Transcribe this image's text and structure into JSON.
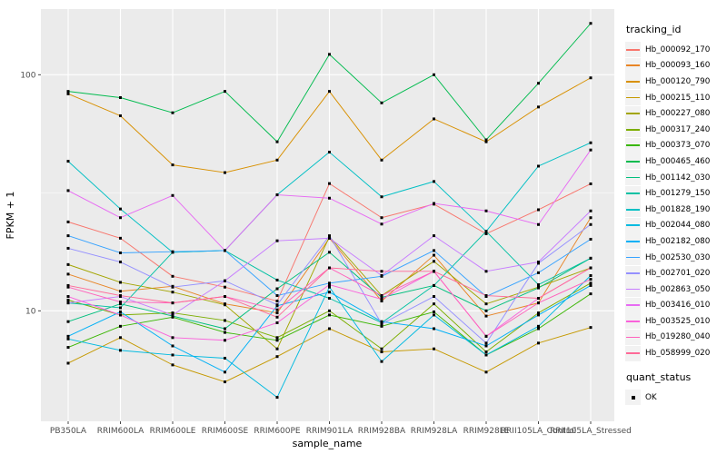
{
  "figure": {
    "legend1_title": "tracking_id",
    "legend2_title": "quant_status",
    "quant_status_label": "OK",
    "colors": {
      "panel_bg": "#EBEBEB",
      "grid_major": "#FFFFFF",
      "grid_minor": "#F7F7F7",
      "axis_text": "#4D4D4D",
      "tick_mark": "#333333",
      "point": "#000000",
      "legend_key_bg": "#F2F2F2"
    }
  },
  "chart_data": {
    "type": "line",
    "title": "",
    "xlabel": "sample_name",
    "ylabel": "FPKM + 1",
    "y_scale": "log10",
    "y_ticks": [
      100,
      10
    ],
    "y_tick_labels": [
      "100",
      "10"
    ],
    "y_minor_ticks": [
      316.2,
      31.62,
      3.162
    ],
    "ylim": [
      3.2,
      190
    ],
    "grid": true,
    "legend_position": "right",
    "point_shape": "filled-black-square",
    "quant_status": "OK",
    "categories": [
      "PB350LA",
      "RRIM600LA",
      "RRIM600LE",
      "RRIM600SE",
      "RRIM600PE",
      "RRIM901LA",
      "RRIM928BA",
      "RRIM928LA",
      "RRIM928LE",
      "RRII105LA_Control",
      "RRII105LA_Stressed"
    ],
    "series": [
      {
        "name": "Hb_000092_170",
        "color": "#F8766D",
        "values": [
          23.8,
          20.3,
          14.0,
          12.6,
          11.0,
          34.6,
          24.8,
          28.3,
          21.2,
          26.8,
          34.5
        ]
      },
      {
        "name": "Hb_000093_160",
        "color": "#E88526",
        "values": [
          14.3,
          12.1,
          12.7,
          10.7,
          9.8,
          20.3,
          11.0,
          17.2,
          9.5,
          10.8,
          24.8
        ]
      },
      {
        "name": "Hb_000120_790",
        "color": "#D89000",
        "values": [
          83,
          67,
          41.5,
          38.5,
          43.5,
          85,
          43.5,
          65,
          52,
          73,
          97
        ]
      },
      {
        "name": "Hb_000215_110",
        "color": "#C59900",
        "values": [
          6.0,
          7.7,
          5.9,
          5.0,
          6.4,
          8.4,
          6.7,
          6.9,
          5.5,
          7.3,
          8.5
        ]
      },
      {
        "name": "Hb_000227_080",
        "color": "#A3A500",
        "values": [
          15.7,
          13.2,
          12.0,
          10.6,
          6.9,
          20.6,
          11.6,
          16.2,
          10.7,
          12.6,
          15.2
        ]
      },
      {
        "name": "Hb_000317_240",
        "color": "#7CAE00",
        "values": [
          11.1,
          9.6,
          9.8,
          9.1,
          7.7,
          10.0,
          6.9,
          10.7,
          6.7,
          9.8,
          13.1
        ]
      },
      {
        "name": "Hb_000373_070",
        "color": "#39B600",
        "values": [
          7.0,
          8.6,
          9.4,
          8.1,
          7.5,
          9.6,
          8.6,
          9.9,
          6.5,
          8.4,
          11.8
        ]
      },
      {
        "name": "Hb_000465_460",
        "color": "#00BB4E",
        "values": [
          85,
          80,
          69,
          85,
          52,
          122,
          76,
          100,
          53,
          92,
          165
        ]
      },
      {
        "name": "Hb_001142_030",
        "color": "#00BF7D",
        "values": [
          9.0,
          10.7,
          9.5,
          8.4,
          12.4,
          17.7,
          11.4,
          12.8,
          10.0,
          12.5,
          16.7
        ]
      },
      {
        "name": "Hb_001279_150",
        "color": "#00C1A3",
        "values": [
          10.8,
          10.3,
          17.7,
          18.0,
          13.5,
          11.3,
          8.9,
          12.8,
          21.7,
          12.9,
          16.7
        ]
      },
      {
        "name": "Hb_001828_190",
        "color": "#00BFC4",
        "values": [
          43,
          27,
          17.7,
          18.0,
          31,
          47,
          30.4,
          35.3,
          21.7,
          41,
          51.5
        ]
      },
      {
        "name": "Hb_002044_080",
        "color": "#00BAE0",
        "values": [
          7.6,
          6.8,
          6.5,
          6.3,
          4.3,
          12.6,
          6.1,
          9.6,
          6.5,
          8.6,
          14.1
        ]
      },
      {
        "name": "Hb_002182_080",
        "color": "#00B0F6",
        "values": [
          7.8,
          9.9,
          7.1,
          5.5,
          10.5,
          12.0,
          9.0,
          8.4,
          7.1,
          9.6,
          12.8
        ]
      },
      {
        "name": "Hb_002530_030",
        "color": "#35A2FF",
        "values": [
          20.8,
          17.6,
          17.8,
          18.0,
          11.6,
          13.1,
          14.0,
          18.0,
          11.5,
          14.5,
          20.1
        ]
      },
      {
        "name": "Hb_002701_020",
        "color": "#9590FF",
        "values": [
          18.4,
          16.1,
          12.6,
          13.4,
          10.6,
          20.8,
          8.8,
          11.5,
          7.3,
          15.9,
          23.2
        ]
      },
      {
        "name": "Hb_002863_050",
        "color": "#C77CFF",
        "values": [
          10.8,
          11.5,
          9.6,
          13.4,
          19.8,
          20.3,
          14.1,
          20.8,
          14.7,
          16.1,
          26.5
        ]
      },
      {
        "name": "Hb_003416_010",
        "color": "#E76BF3",
        "values": [
          32.3,
          24.8,
          30.8,
          18.0,
          31.0,
          30.0,
          23.3,
          28.5,
          26.5,
          23.2,
          48
        ]
      },
      {
        "name": "Hb_003525_010",
        "color": "#FA62DB",
        "values": [
          11.5,
          9.6,
          7.7,
          7.5,
          8.9,
          12.9,
          11.2,
          14.7,
          7.8,
          11.3,
          15.2
        ]
      },
      {
        "name": "Hb_019280_040",
        "color": "#FF62BC",
        "values": [
          12.6,
          10.9,
          10.8,
          11.5,
          10.1,
          15.2,
          11.6,
          14.7,
          7.8,
          10.8,
          13.6
        ]
      },
      {
        "name": "Hb_058999_020",
        "color": "#FF6A98",
        "values": [
          12.8,
          11.6,
          10.8,
          11.5,
          9.4,
          15.2,
          14.7,
          14.7,
          11.6,
          11.3,
          15.2
        ]
      }
    ]
  }
}
